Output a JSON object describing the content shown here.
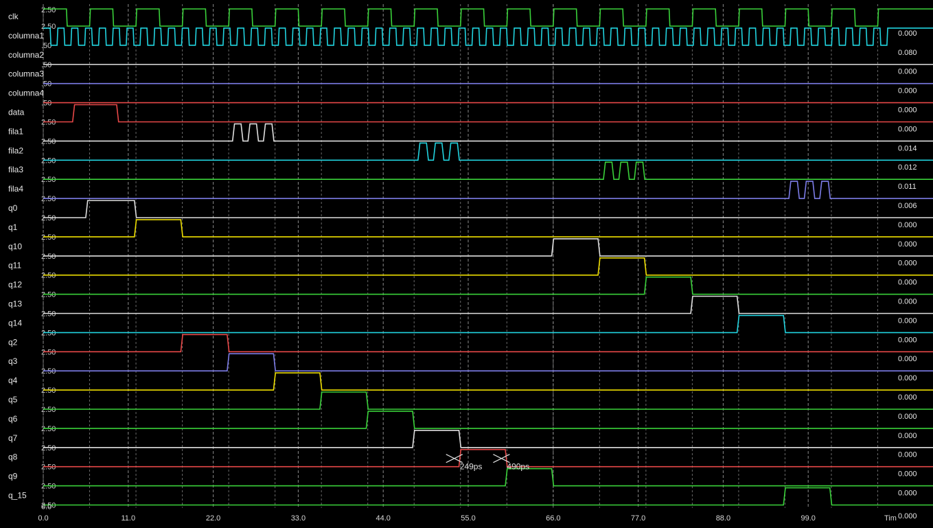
{
  "chart_data": {
    "type": "line",
    "title": "",
    "xlabel": "Tim",
    "ylabel": "",
    "xlim": [
      0,
      110
    ],
    "x_ticks": [
      "0.0",
      "11.0",
      "22.0",
      "33.0",
      "44.0",
      "55.0",
      "66.0",
      "77.0",
      "88.0",
      "99.0"
    ],
    "x_tick_values": [
      0,
      11,
      22,
      33,
      44,
      55,
      66,
      77,
      88,
      99
    ],
    "grid": true,
    "background": "#000000",
    "scale_labels": {
      "first_row": "2.50",
      "clk": "2.50",
      "bottom": "0.0",
      "generic": "2.50",
      "columns": ".50"
    },
    "cursors": [
      {
        "label": "249ps",
        "x": 53.2
      },
      {
        "label": "490ps",
        "x": 59.3
      }
    ],
    "series": [
      {
        "name": "clk",
        "color": "#3ad23a",
        "value": "",
        "kind": "clock",
        "period": 6,
        "high_from": 0,
        "start": 0
      },
      {
        "name": "columna1",
        "color": "#21d4e0",
        "value": "0.000",
        "kind": "clock",
        "period": 1.79,
        "start": 0
      },
      {
        "name": "columna2",
        "color": "#cfcfcf",
        "value": "0.080",
        "kind": "flat"
      },
      {
        "name": "columna3",
        "color": "#7d7de8",
        "value": "0.000",
        "kind": "flat"
      },
      {
        "name": "columna4",
        "color": "#e84848",
        "value": "0.000",
        "kind": "flat"
      },
      {
        "name": "data",
        "color": "#e84848",
        "value": "0.000",
        "kind": "pulses",
        "pulses": [
          [
            3.8,
            9.5
          ]
        ]
      },
      {
        "name": "fila1",
        "color": "#e0e0e0",
        "value": "0.000",
        "kind": "pulses",
        "pulses": [
          [
            24.5,
            25.6
          ],
          [
            26.5,
            27.6
          ],
          [
            28.5,
            29.6
          ]
        ]
      },
      {
        "name": "fila2",
        "color": "#21d4e0",
        "value": "0.014",
        "kind": "pulses",
        "pulses": [
          [
            48.5,
            49.6
          ],
          [
            50.5,
            51.6
          ],
          [
            52.5,
            53.6
          ]
        ]
      },
      {
        "name": "fila3",
        "color": "#3ad23a",
        "value": "0.012",
        "kind": "pulses",
        "pulses": [
          [
            72.5,
            73.6
          ],
          [
            74.5,
            75.6
          ],
          [
            76.5,
            77.6
          ]
        ]
      },
      {
        "name": "fila4",
        "color": "#7d7de8",
        "value": "0.011",
        "kind": "pulses",
        "pulses": [
          [
            96.5,
            97.6
          ],
          [
            98.5,
            99.6
          ],
          [
            100.5,
            101.6
          ]
        ]
      },
      {
        "name": "q0",
        "color": "#e0e0e0",
        "value": "0.006",
        "kind": "pulses",
        "pulses": [
          [
            5.5,
            11.8
          ]
        ]
      },
      {
        "name": "q1",
        "color": "#f0e000",
        "value": "0.000",
        "kind": "pulses",
        "pulses": [
          [
            11.8,
            17.8
          ]
        ]
      },
      {
        "name": "q10",
        "color": "#e0e0e0",
        "value": "0.000",
        "kind": "pulses",
        "pulses": [
          [
            65.8,
            71.8
          ]
        ]
      },
      {
        "name": "q11",
        "color": "#f0e000",
        "value": "0.000",
        "kind": "pulses",
        "pulses": [
          [
            71.8,
            77.8
          ]
        ]
      },
      {
        "name": "q12",
        "color": "#3ad23a",
        "value": "0.000",
        "kind": "pulses",
        "pulses": [
          [
            77.8,
            83.8
          ]
        ]
      },
      {
        "name": "q13",
        "color": "#e0e0e0",
        "value": "0.000",
        "kind": "pulses",
        "pulses": [
          [
            83.8,
            89.8
          ]
        ]
      },
      {
        "name": "q14",
        "color": "#21d4e0",
        "value": "0.000",
        "kind": "pulses",
        "pulses": [
          [
            89.8,
            95.8
          ]
        ]
      },
      {
        "name": "q2",
        "color": "#e84848",
        "value": "0.000",
        "kind": "pulses",
        "pulses": [
          [
            17.8,
            23.8
          ]
        ]
      },
      {
        "name": "q3",
        "color": "#7d7de8",
        "value": "0.000",
        "kind": "pulses",
        "pulses": [
          [
            23.8,
            29.8
          ]
        ]
      },
      {
        "name": "q4",
        "color": "#f0e000",
        "value": "0.000",
        "kind": "pulses",
        "pulses": [
          [
            29.8,
            35.8
          ]
        ]
      },
      {
        "name": "q5",
        "color": "#3ad23a",
        "value": "0.000",
        "kind": "pulses",
        "pulses": [
          [
            35.8,
            41.8
          ]
        ]
      },
      {
        "name": "q6",
        "color": "#3ad23a",
        "value": "0.000",
        "kind": "pulses",
        "pulses": [
          [
            41.8,
            47.8
          ]
        ]
      },
      {
        "name": "q7",
        "color": "#e0e0e0",
        "value": "0.000",
        "kind": "pulses",
        "pulses": [
          [
            47.8,
            53.8
          ]
        ]
      },
      {
        "name": "q8",
        "color": "#e84848",
        "value": "0.000",
        "kind": "pulses",
        "pulses": [
          [
            53.8,
            59.8
          ]
        ]
      },
      {
        "name": "q9",
        "color": "#3ad23a",
        "value": "0.000",
        "kind": "pulses",
        "pulses": [
          [
            59.8,
            65.8
          ]
        ]
      },
      {
        "name": "q_15",
        "color": "#3ad23a",
        "value": "0.000",
        "kind": "pulses",
        "pulses": [
          [
            95.8,
            101.8
          ]
        ]
      }
    ],
    "bottom_value": "0.000"
  }
}
